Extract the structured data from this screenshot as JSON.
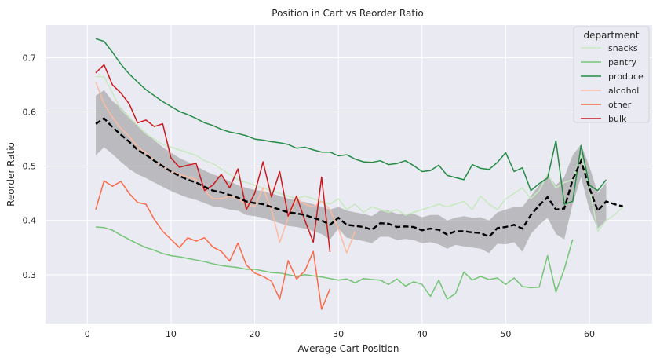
{
  "chart_data": {
    "type": "line",
    "title": "Position in Cart vs Reorder Ratio",
    "xlabel": "Average Cart Position",
    "ylabel": "Reorder Ratio",
    "xlim": [
      -5,
      67.5
    ],
    "ylim": [
      0.21,
      0.76
    ],
    "xticks": [
      0,
      10,
      20,
      30,
      40,
      50,
      60
    ],
    "yticks": [
      0.3,
      0.4,
      0.5,
      0.6,
      0.7
    ],
    "ytick_labels": [
      "0.3",
      "0.4",
      "0.5",
      "0.6",
      "0.7"
    ],
    "grid": true,
    "legend": {
      "title": "department",
      "placement": "top-right"
    },
    "series": [
      {
        "name": "snacks",
        "color": "#c7e9c0",
        "x": [
          1,
          2,
          3,
          4,
          5,
          6,
          7,
          8,
          9,
          10,
          11,
          12,
          13,
          14,
          15,
          16,
          17,
          18,
          19,
          20,
          21,
          22,
          23,
          24,
          25,
          26,
          27,
          28,
          29,
          30,
          31,
          32,
          33,
          34,
          35,
          36,
          37,
          38,
          39,
          40,
          41,
          42,
          43,
          44,
          45,
          46,
          47,
          48,
          49,
          50,
          51,
          52,
          53,
          54,
          55,
          56,
          57,
          58,
          59,
          60,
          61,
          62,
          63,
          64
        ],
        "y": [
          0.665,
          0.665,
          0.635,
          0.605,
          0.59,
          0.575,
          0.56,
          0.55,
          0.54,
          0.535,
          0.53,
          0.525,
          0.52,
          0.51,
          0.505,
          0.495,
          0.485,
          0.475,
          0.47,
          0.465,
          0.46,
          0.455,
          0.45,
          0.445,
          0.44,
          0.445,
          0.44,
          0.435,
          0.43,
          0.44,
          0.42,
          0.43,
          0.415,
          0.425,
          0.42,
          0.415,
          0.42,
          0.41,
          0.415,
          0.42,
          0.425,
          0.43,
          0.425,
          0.43,
          0.435,
          0.42,
          0.445,
          0.43,
          0.42,
          0.44,
          0.45,
          0.46,
          0.44,
          0.455,
          0.485,
          0.46,
          0.47,
          0.475,
          0.52,
          0.46,
          0.38,
          0.4,
          0.41,
          0.425
        ]
      },
      {
        "name": "pantry",
        "color": "#74c476",
        "x": [
          1,
          2,
          3,
          4,
          5,
          6,
          7,
          8,
          9,
          10,
          11,
          12,
          13,
          14,
          15,
          16,
          17,
          18,
          19,
          20,
          21,
          22,
          23,
          24,
          25,
          26,
          27,
          28,
          29,
          30,
          31,
          32,
          33,
          34,
          35,
          36,
          37,
          38,
          39,
          40,
          41,
          42,
          43,
          44,
          45,
          46,
          47,
          48,
          49,
          50,
          51,
          52,
          53,
          54,
          55,
          56,
          57,
          58
        ],
        "y": [
          0.388,
          0.387,
          0.382,
          0.373,
          0.365,
          0.357,
          0.35,
          0.345,
          0.339,
          0.335,
          0.333,
          0.33,
          0.327,
          0.324,
          0.32,
          0.317,
          0.315,
          0.313,
          0.31,
          0.31,
          0.307,
          0.304,
          0.303,
          0.3,
          0.297,
          0.3,
          0.298,
          0.296,
          0.293,
          0.29,
          0.292,
          0.285,
          0.293,
          0.291,
          0.29,
          0.282,
          0.292,
          0.279,
          0.287,
          0.282,
          0.26,
          0.29,
          0.255,
          0.265,
          0.305,
          0.29,
          0.297,
          0.291,
          0.294,
          0.282,
          0.294,
          0.278,
          0.276,
          0.277,
          0.335,
          0.268,
          0.31,
          0.365
        ]
      },
      {
        "name": "produce",
        "color": "#238b45",
        "x": [
          1,
          2,
          3,
          4,
          5,
          6,
          7,
          8,
          9,
          10,
          11,
          12,
          13,
          14,
          15,
          16,
          17,
          18,
          19,
          20,
          21,
          22,
          23,
          24,
          25,
          26,
          27,
          28,
          29,
          30,
          31,
          32,
          33,
          34,
          35,
          36,
          37,
          38,
          39,
          40,
          41,
          42,
          43,
          44,
          45,
          46,
          47,
          48,
          49,
          50,
          51,
          52,
          53,
          54,
          55,
          56,
          57,
          58,
          59,
          60,
          61,
          62
        ],
        "y": [
          0.735,
          0.73,
          0.71,
          0.688,
          0.67,
          0.655,
          0.641,
          0.63,
          0.619,
          0.61,
          0.601,
          0.595,
          0.588,
          0.58,
          0.575,
          0.568,
          0.563,
          0.56,
          0.556,
          0.55,
          0.548,
          0.545,
          0.543,
          0.54,
          0.533,
          0.535,
          0.53,
          0.526,
          0.526,
          0.519,
          0.521,
          0.513,
          0.508,
          0.507,
          0.51,
          0.503,
          0.505,
          0.51,
          0.501,
          0.49,
          0.492,
          0.502,
          0.483,
          0.479,
          0.475,
          0.503,
          0.496,
          0.494,
          0.507,
          0.525,
          0.49,
          0.497,
          0.455,
          0.468,
          0.478,
          0.547,
          0.43,
          0.435,
          0.538,
          0.465,
          0.455,
          0.475
        ]
      },
      {
        "name": "alcohol",
        "color": "#fcbba1",
        "x": [
          1,
          2,
          3,
          4,
          5,
          6,
          7,
          8,
          9,
          10,
          11,
          12,
          13,
          14,
          15,
          16,
          17,
          18,
          19,
          20,
          21,
          22,
          23,
          24,
          25,
          26,
          27,
          28,
          29,
          30,
          31,
          32
        ],
        "y": [
          0.655,
          0.615,
          0.59,
          0.57,
          0.555,
          0.535,
          0.525,
          0.51,
          0.5,
          0.49,
          0.485,
          0.48,
          0.475,
          0.455,
          0.44,
          0.44,
          0.445,
          0.44,
          0.43,
          0.425,
          0.46,
          0.42,
          0.36,
          0.405,
          0.44,
          0.43,
          0.425,
          0.435,
          0.42,
          0.385,
          0.34,
          0.38
        ]
      },
      {
        "name": "other",
        "color": "#fb6a4a",
        "x": [
          1,
          2,
          3,
          4,
          5,
          6,
          7,
          8,
          9,
          10,
          11,
          12,
          13,
          14,
          15,
          16,
          17,
          18,
          19,
          20,
          21,
          22,
          23,
          24,
          25,
          26,
          27,
          28,
          29
        ],
        "y": [
          0.42,
          0.473,
          0.463,
          0.472,
          0.45,
          0.433,
          0.43,
          0.402,
          0.38,
          0.365,
          0.35,
          0.368,
          0.362,
          0.368,
          0.351,
          0.343,
          0.325,
          0.358,
          0.318,
          0.303,
          0.297,
          0.288,
          0.255,
          0.326,
          0.292,
          0.307,
          0.343,
          0.236,
          0.274
        ]
      },
      {
        "name": "bulk",
        "color": "#cb181d",
        "x": [
          1,
          2,
          3,
          4,
          5,
          6,
          7,
          8,
          9,
          10,
          11,
          12,
          13,
          14,
          15,
          16,
          17,
          18,
          19,
          20,
          21,
          22,
          23,
          24,
          25,
          26,
          27,
          28,
          29
        ],
        "y": [
          0.672,
          0.687,
          0.65,
          0.635,
          0.615,
          0.58,
          0.585,
          0.573,
          0.578,
          0.515,
          0.498,
          0.502,
          0.505,
          0.455,
          0.465,
          0.485,
          0.46,
          0.495,
          0.42,
          0.45,
          0.508,
          0.443,
          0.49,
          0.408,
          0.445,
          0.4,
          0.36,
          0.48,
          0.342
        ]
      }
    ],
    "mean_line": {
      "color": "#000000",
      "x": [
        1,
        2,
        3,
        4,
        5,
        6,
        7,
        8,
        9,
        10,
        11,
        12,
        13,
        14,
        15,
        16,
        17,
        18,
        19,
        20,
        21,
        22,
        23,
        24,
        25,
        26,
        27,
        28,
        29,
        30,
        31,
        32,
        33,
        34,
        35,
        36,
        37,
        38,
        39,
        40,
        41,
        42,
        43,
        44,
        45,
        46,
        47,
        48,
        49,
        50,
        51,
        52,
        53,
        54,
        55,
        56,
        57,
        58,
        59,
        60,
        61,
        62,
        63,
        64
      ],
      "y": [
        0.578,
        0.588,
        0.572,
        0.558,
        0.545,
        0.53,
        0.521,
        0.51,
        0.5,
        0.49,
        0.482,
        0.475,
        0.47,
        0.462,
        0.455,
        0.452,
        0.447,
        0.442,
        0.435,
        0.432,
        0.43,
        0.425,
        0.42,
        0.415,
        0.413,
        0.41,
        0.405,
        0.4,
        0.392,
        0.405,
        0.392,
        0.39,
        0.388,
        0.383,
        0.395,
        0.394,
        0.388,
        0.389,
        0.388,
        0.382,
        0.385,
        0.383,
        0.374,
        0.38,
        0.38,
        0.378,
        0.377,
        0.37,
        0.386,
        0.388,
        0.392,
        0.385,
        0.41,
        0.428,
        0.443,
        0.42,
        0.422,
        0.475,
        0.51,
        0.46,
        0.418,
        0.435,
        0.43,
        0.426
      ]
    },
    "ci_band": {
      "color": "#8c8c8c",
      "x": [
        1,
        2,
        3,
        4,
        5,
        6,
        7,
        8,
        9,
        10,
        11,
        12,
        13,
        14,
        15,
        16,
        17,
        18,
        19,
        20,
        21,
        22,
        23,
        24,
        25,
        26,
        27,
        28,
        29,
        30,
        31,
        32,
        33,
        34,
        35,
        36,
        37,
        38,
        39,
        40,
        41,
        42,
        43,
        44,
        45,
        46,
        47,
        48,
        49,
        50,
        51,
        52,
        53,
        54,
        55,
        56,
        57,
        58,
        59,
        60,
        61,
        62
      ],
      "upper": [
        0.63,
        0.64,
        0.62,
        0.608,
        0.592,
        0.575,
        0.562,
        0.548,
        0.535,
        0.525,
        0.515,
        0.508,
        0.5,
        0.492,
        0.485,
        0.48,
        0.472,
        0.465,
        0.46,
        0.456,
        0.454,
        0.45,
        0.445,
        0.44,
        0.437,
        0.434,
        0.43,
        0.425,
        0.42,
        0.425,
        0.418,
        0.415,
        0.412,
        0.408,
        0.418,
        0.418,
        0.412,
        0.412,
        0.412,
        0.406,
        0.41,
        0.41,
        0.4,
        0.405,
        0.408,
        0.405,
        0.406,
        0.4,
        0.415,
        0.42,
        0.425,
        0.425,
        0.445,
        0.465,
        0.485,
        0.465,
        0.48,
        0.52,
        0.54,
        0.5,
        0.45,
        0.47
      ],
      "lower": [
        0.52,
        0.535,
        0.522,
        0.508,
        0.495,
        0.485,
        0.478,
        0.47,
        0.462,
        0.454,
        0.448,
        0.442,
        0.438,
        0.432,
        0.426,
        0.424,
        0.42,
        0.418,
        0.41,
        0.408,
        0.405,
        0.4,
        0.395,
        0.39,
        0.388,
        0.385,
        0.38,
        0.375,
        0.365,
        0.385,
        0.368,
        0.365,
        0.362,
        0.358,
        0.37,
        0.37,
        0.364,
        0.366,
        0.364,
        0.358,
        0.36,
        0.356,
        0.348,
        0.355,
        0.352,
        0.35,
        0.348,
        0.34,
        0.357,
        0.356,
        0.36,
        0.342,
        0.375,
        0.392,
        0.405,
        0.375,
        0.365,
        0.43,
        0.48,
        0.42,
        0.385,
        0.4
      ]
    }
  }
}
